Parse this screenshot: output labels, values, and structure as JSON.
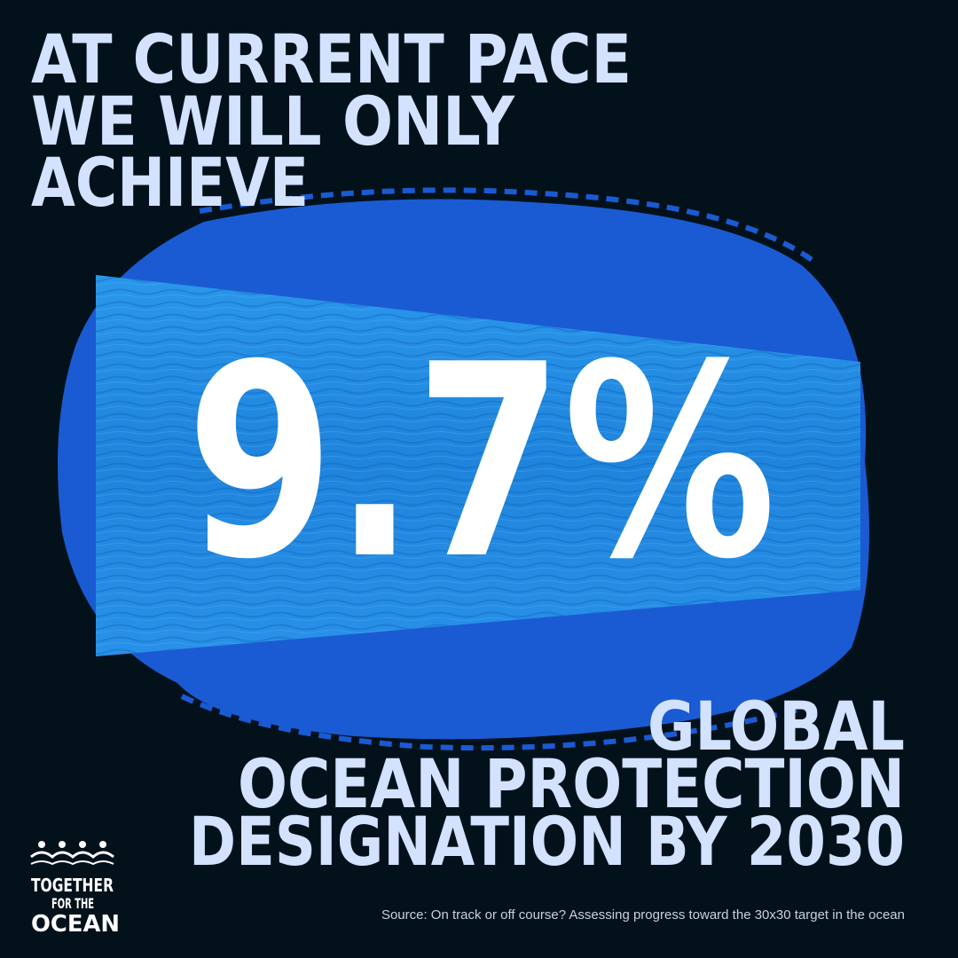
{
  "headline": {
    "lines": [
      "AT CURRENT PACE",
      "WE WILL ONLY",
      "ACHIEVE"
    ]
  },
  "stat": "9.7%",
  "subline": {
    "lines": [
      "GLOBAL",
      "OCEAN PROTECTION",
      "DESIGNATION BY 2030"
    ]
  },
  "logo": {
    "lines": [
      "TOGETHER",
      "FOR THE",
      "OCEAN"
    ]
  },
  "source": "Source: On track or off course? Assessing progress toward the 30x30 target in the ocean"
}
